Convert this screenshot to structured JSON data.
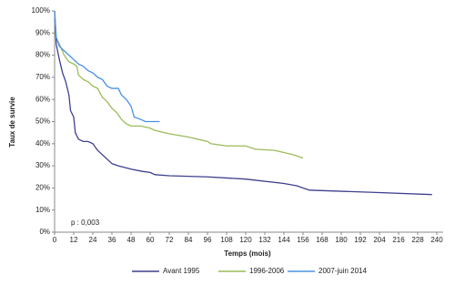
{
  "chart_data": {
    "type": "line",
    "x_label": "Temps (mois)",
    "y_label": "Taux de survie",
    "annotation": "p : 0,003",
    "xlim": [
      0,
      244
    ],
    "ylim": [
      0,
      100
    ],
    "xticks": [
      0,
      12,
      24,
      36,
      48,
      60,
      72,
      84,
      96,
      108,
      120,
      132,
      144,
      156,
      168,
      180,
      192,
      204,
      216,
      228,
      240
    ],
    "yticks": [
      {
        "value": 0,
        "label": "0%"
      },
      {
        "value": 10,
        "label": "10%"
      },
      {
        "value": 20,
        "label": "20%"
      },
      {
        "value": 30,
        "label": "30%"
      },
      {
        "value": 40,
        "label": "40%"
      },
      {
        "value": 50,
        "label": "50%"
      },
      {
        "value": 60,
        "label": "60%"
      },
      {
        "value": 70,
        "label": "70%"
      },
      {
        "value": 80,
        "label": "80%"
      },
      {
        "value": 90,
        "label": "90%"
      },
      {
        "value": 100,
        "label": "100%"
      }
    ],
    "grid": false,
    "legend": "bottom",
    "series": [
      {
        "name": "Avant 1995",
        "color": "#3f3f8f",
        "x": [
          0,
          1,
          3,
          5,
          7,
          9,
          10,
          12,
          13,
          15,
          18,
          21,
          24,
          27,
          30,
          33,
          36,
          40,
          48,
          55,
          60,
          63,
          72,
          96,
          120,
          144,
          152,
          160,
          200,
          237
        ],
        "values": [
          100,
          85,
          78,
          72,
          68,
          62,
          55,
          52,
          45,
          42,
          41,
          41,
          40,
          37,
          35,
          33,
          31,
          30,
          28.5,
          27.5,
          27,
          26,
          25.5,
          25,
          24,
          22,
          21,
          19,
          18,
          17
        ]
      },
      {
        "name": "1996-2006",
        "color": "#9bbb59",
        "x": [
          0,
          1,
          3,
          6,
          9,
          12,
          14,
          15,
          18,
          21,
          24,
          27,
          30,
          33,
          36,
          39,
          42,
          45,
          48,
          54,
          60,
          63,
          72,
          84,
          96,
          98,
          108,
          120,
          126,
          138,
          144,
          150,
          156
        ],
        "values": [
          100,
          88,
          85,
          80,
          77,
          76,
          75,
          71,
          69,
          68,
          66,
          65,
          61,
          59,
          56,
          54,
          51,
          49,
          48,
          48,
          47,
          46,
          44.5,
          43,
          41,
          40,
          39,
          39,
          37.5,
          37,
          36,
          35,
          33.5
        ]
      },
      {
        "name": "2007-juin 2014",
        "color": "#4a90e2",
        "x": [
          0,
          1,
          3,
          6,
          9,
          12,
          15,
          18,
          21,
          24,
          27,
          30,
          33,
          36,
          40,
          42,
          45,
          48,
          50,
          54,
          57,
          60,
          66
        ],
        "values": [
          100,
          88,
          84,
          82,
          80,
          78,
          76,
          75,
          73,
          72,
          70,
          69,
          66,
          65,
          65,
          62,
          60,
          57,
          52,
          51,
          50,
          50,
          50
        ]
      }
    ]
  }
}
